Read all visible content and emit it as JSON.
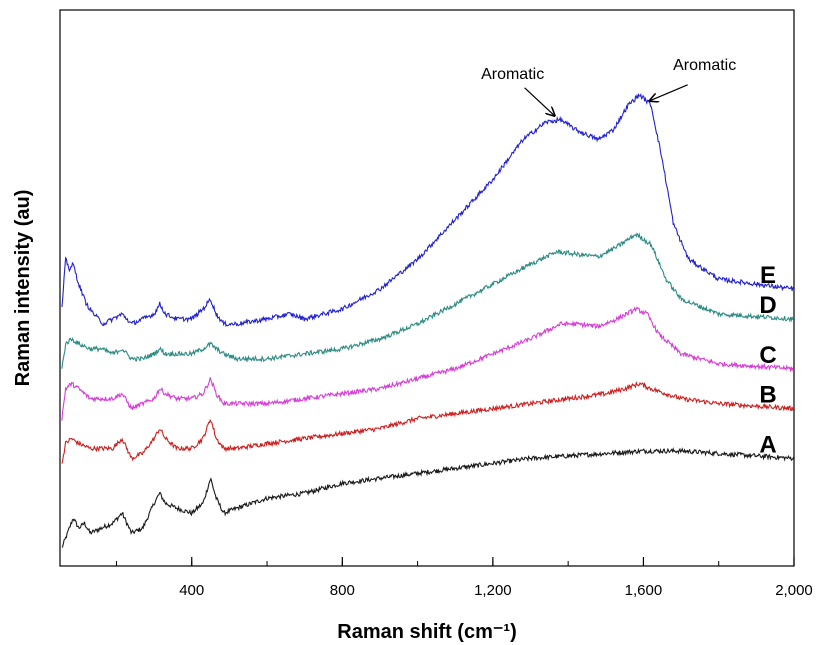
{
  "chart_data": {
    "type": "line",
    "xlabel": "Raman shift (cm⁻¹)",
    "ylabel": "Raman intensity (au)",
    "xlim": [
      50,
      2000
    ],
    "ylim": [
      0,
      100
    ],
    "x_ticks": [
      400,
      800,
      1200,
      1600,
      2000
    ],
    "x_tick_labels": [
      "400",
      "800",
      "1,200",
      "1,600",
      "2,000"
    ],
    "grid": false,
    "legend": "none",
    "series": [
      {
        "name": "A",
        "color": "#1a1a1a",
        "points": [
          [
            55,
            2
          ],
          [
            75,
            6
          ],
          [
            85,
            8
          ],
          [
            100,
            6
          ],
          [
            115,
            7
          ],
          [
            130,
            5
          ],
          [
            160,
            6
          ],
          [
            190,
            7
          ],
          [
            215,
            9
          ],
          [
            240,
            5
          ],
          [
            270,
            6
          ],
          [
            300,
            11
          ],
          [
            315,
            13
          ],
          [
            330,
            11
          ],
          [
            360,
            10
          ],
          [
            400,
            9
          ],
          [
            430,
            11
          ],
          [
            450,
            16
          ],
          [
            465,
            12
          ],
          [
            485,
            9
          ],
          [
            520,
            10
          ],
          [
            600,
            12
          ],
          [
            700,
            13
          ],
          [
            800,
            15
          ],
          [
            900,
            16
          ],
          [
            1000,
            17
          ],
          [
            1100,
            18
          ],
          [
            1200,
            19
          ],
          [
            1300,
            20
          ],
          [
            1400,
            20.5
          ],
          [
            1500,
            21
          ],
          [
            1600,
            21.5
          ],
          [
            1700,
            21.5
          ],
          [
            1800,
            21
          ],
          [
            1900,
            20.5
          ],
          [
            2000,
            20
          ]
        ]
      },
      {
        "name": "B",
        "color": "#cc2020",
        "points": [
          [
            55,
            19
          ],
          [
            65,
            23
          ],
          [
            80,
            24
          ],
          [
            100,
            23
          ],
          [
            130,
            22
          ],
          [
            160,
            22
          ],
          [
            190,
            22
          ],
          [
            215,
            24
          ],
          [
            240,
            20
          ],
          [
            270,
            21
          ],
          [
            300,
            24
          ],
          [
            315,
            26
          ],
          [
            330,
            24
          ],
          [
            360,
            22
          ],
          [
            400,
            22
          ],
          [
            430,
            24
          ],
          [
            450,
            28
          ],
          [
            465,
            24
          ],
          [
            485,
            22
          ],
          [
            520,
            22
          ],
          [
            600,
            23
          ],
          [
            700,
            24
          ],
          [
            800,
            25
          ],
          [
            900,
            26
          ],
          [
            1000,
            28
          ],
          [
            1100,
            29
          ],
          [
            1200,
            30
          ],
          [
            1300,
            31
          ],
          [
            1400,
            32
          ],
          [
            1500,
            33
          ],
          [
            1550,
            34
          ],
          [
            1590,
            35
          ],
          [
            1620,
            34
          ],
          [
            1700,
            32
          ],
          [
            1800,
            31
          ],
          [
            1900,
            30.5
          ],
          [
            2000,
            30
          ]
        ]
      },
      {
        "name": "C",
        "color": "#d63fd6",
        "points": [
          [
            55,
            28
          ],
          [
            65,
            34
          ],
          [
            80,
            35
          ],
          [
            100,
            34
          ],
          [
            130,
            32
          ],
          [
            160,
            32
          ],
          [
            190,
            32
          ],
          [
            215,
            33
          ],
          [
            240,
            30
          ],
          [
            270,
            31
          ],
          [
            300,
            32
          ],
          [
            315,
            34
          ],
          [
            330,
            33
          ],
          [
            360,
            32
          ],
          [
            400,
            32
          ],
          [
            430,
            33
          ],
          [
            450,
            36
          ],
          [
            465,
            33
          ],
          [
            485,
            31
          ],
          [
            520,
            31
          ],
          [
            600,
            31
          ],
          [
            700,
            32
          ],
          [
            800,
            33
          ],
          [
            900,
            34
          ],
          [
            1000,
            36
          ],
          [
            1100,
            38
          ],
          [
            1200,
            41
          ],
          [
            1300,
            44
          ],
          [
            1380,
            47
          ],
          [
            1420,
            47
          ],
          [
            1480,
            46.5
          ],
          [
            1530,
            48
          ],
          [
            1580,
            50
          ],
          [
            1610,
            49
          ],
          [
            1640,
            45
          ],
          [
            1700,
            41
          ],
          [
            1800,
            39
          ],
          [
            1900,
            38.5
          ],
          [
            2000,
            38
          ]
        ]
      },
      {
        "name": "D",
        "color": "#2e8b84",
        "points": [
          [
            55,
            38
          ],
          [
            65,
            43
          ],
          [
            80,
            44
          ],
          [
            100,
            43
          ],
          [
            130,
            42
          ],
          [
            160,
            42
          ],
          [
            190,
            41
          ],
          [
            215,
            42
          ],
          [
            240,
            40
          ],
          [
            270,
            40
          ],
          [
            300,
            41
          ],
          [
            315,
            42
          ],
          [
            330,
            41
          ],
          [
            360,
            41
          ],
          [
            400,
            41
          ],
          [
            430,
            42
          ],
          [
            450,
            43
          ],
          [
            465,
            42
          ],
          [
            485,
            41
          ],
          [
            520,
            40
          ],
          [
            600,
            40
          ],
          [
            700,
            41
          ],
          [
            800,
            42
          ],
          [
            900,
            44
          ],
          [
            1000,
            47
          ],
          [
            1100,
            51
          ],
          [
            1200,
            55
          ],
          [
            1300,
            59
          ],
          [
            1370,
            61.5
          ],
          [
            1420,
            61
          ],
          [
            1480,
            60.5
          ],
          [
            1530,
            62.5
          ],
          [
            1580,
            65
          ],
          [
            1620,
            63
          ],
          [
            1660,
            56
          ],
          [
            1700,
            52
          ],
          [
            1800,
            49
          ],
          [
            1900,
            48.5
          ],
          [
            2000,
            48
          ]
        ]
      },
      {
        "name": "E",
        "color": "#2222cc",
        "points": [
          [
            55,
            50
          ],
          [
            65,
            60
          ],
          [
            75,
            58
          ],
          [
            85,
            59
          ],
          [
            100,
            55
          ],
          [
            120,
            51
          ],
          [
            140,
            49
          ],
          [
            165,
            47
          ],
          [
            190,
            48
          ],
          [
            215,
            49
          ],
          [
            240,
            47
          ],
          [
            270,
            48
          ],
          [
            300,
            49
          ],
          [
            315,
            51
          ],
          [
            330,
            49
          ],
          [
            360,
            48
          ],
          [
            400,
            48
          ],
          [
            430,
            50
          ],
          [
            450,
            52
          ],
          [
            465,
            49
          ],
          [
            485,
            47
          ],
          [
            520,
            47
          ],
          [
            600,
            48
          ],
          [
            660,
            49
          ],
          [
            700,
            48
          ],
          [
            800,
            50
          ],
          [
            900,
            54
          ],
          [
            1000,
            60
          ],
          [
            1100,
            68
          ],
          [
            1200,
            76
          ],
          [
            1280,
            84
          ],
          [
            1340,
            87.5
          ],
          [
            1380,
            88
          ],
          [
            1420,
            86
          ],
          [
            1480,
            84
          ],
          [
            1520,
            86
          ],
          [
            1560,
            91
          ],
          [
            1590,
            93
          ],
          [
            1620,
            91
          ],
          [
            1650,
            80
          ],
          [
            1680,
            67
          ],
          [
            1720,
            60
          ],
          [
            1800,
            56
          ],
          [
            1900,
            55
          ],
          [
            2000,
            54
          ]
        ]
      }
    ],
    "annotations": [
      {
        "text": "Aromatic",
        "target_x": 1380
      },
      {
        "text": "Aromatic",
        "target_x": 1590
      }
    ]
  }
}
